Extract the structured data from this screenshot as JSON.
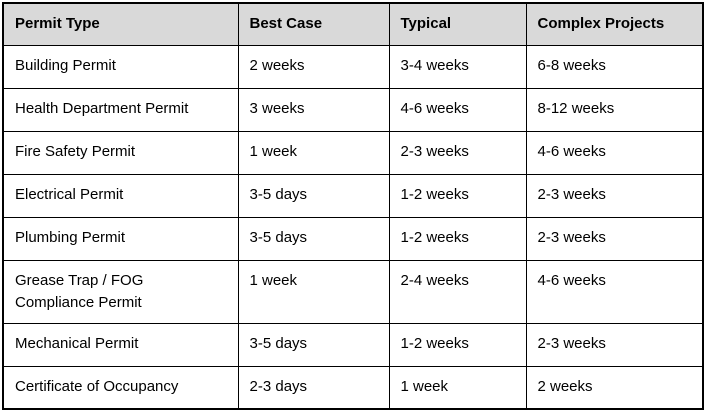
{
  "table": {
    "name": "permit-timeline-table",
    "headers": [
      "Permit Type",
      "Best Case",
      "Typical",
      "Complex Projects"
    ],
    "rows": [
      [
        "Building Permit",
        "2 weeks",
        "3-4 weeks",
        "6-8 weeks"
      ],
      [
        "Health Department Permit",
        "3 weeks",
        "4-6 weeks",
        "8-12 weeks"
      ],
      [
        "Fire Safety Permit",
        "1 week",
        "2-3 weeks",
        "4-6 weeks"
      ],
      [
        "Electrical Permit",
        "3-5 days",
        "1-2 weeks",
        "2-3 weeks"
      ],
      [
        "Plumbing Permit",
        "3-5 days",
        "1-2 weeks",
        "2-3 weeks"
      ],
      [
        "Grease Trap / FOG Compliance Permit",
        "1 week",
        "2-4 weeks",
        "4-6 weeks"
      ],
      [
        "Mechanical Permit",
        "3-5 days",
        "1-2 weeks",
        "2-3 weeks"
      ],
      [
        "Certificate of Occupancy",
        "2-3 days",
        "1 week",
        "2 weeks"
      ]
    ],
    "colors": {
      "header_bg": "#d9d9d9",
      "border": "#000000",
      "text": "#000000",
      "row_bg": "#ffffff"
    }
  }
}
